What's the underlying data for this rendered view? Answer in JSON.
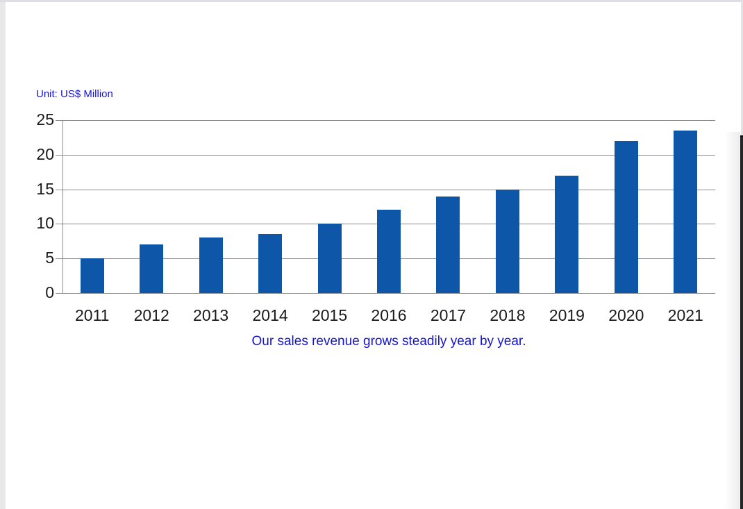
{
  "window": {
    "unit_label": "Unit: US$ Million",
    "caption": "Our sales revenue grows steadily year by year."
  },
  "colors": {
    "bar": "#0e56a7",
    "grid": "#8a8a8a",
    "text_blue": "#1413d3",
    "axis_text": "#1a1a1a",
    "page_edge": "#e8e8eb",
    "dark_strip": "#262626"
  },
  "chart_data": {
    "type": "bar",
    "title": "",
    "unit_label": "Unit: US$ Million",
    "caption": "Our sales revenue grows steadily year by year.",
    "categories": [
      "2011",
      "2012",
      "2013",
      "2014",
      "2015",
      "2016",
      "2017",
      "2018",
      "2019",
      "2020",
      "2021"
    ],
    "values": [
      5,
      7,
      8,
      8.5,
      10,
      12,
      14,
      15,
      17,
      22,
      23.5
    ],
    "xlabel": "",
    "ylabel": "",
    "ylim": [
      0,
      25
    ],
    "yticks": [
      0,
      5,
      10,
      15,
      20,
      25
    ],
    "grid": true,
    "legend": false,
    "bar_color": "#0e56a7"
  }
}
